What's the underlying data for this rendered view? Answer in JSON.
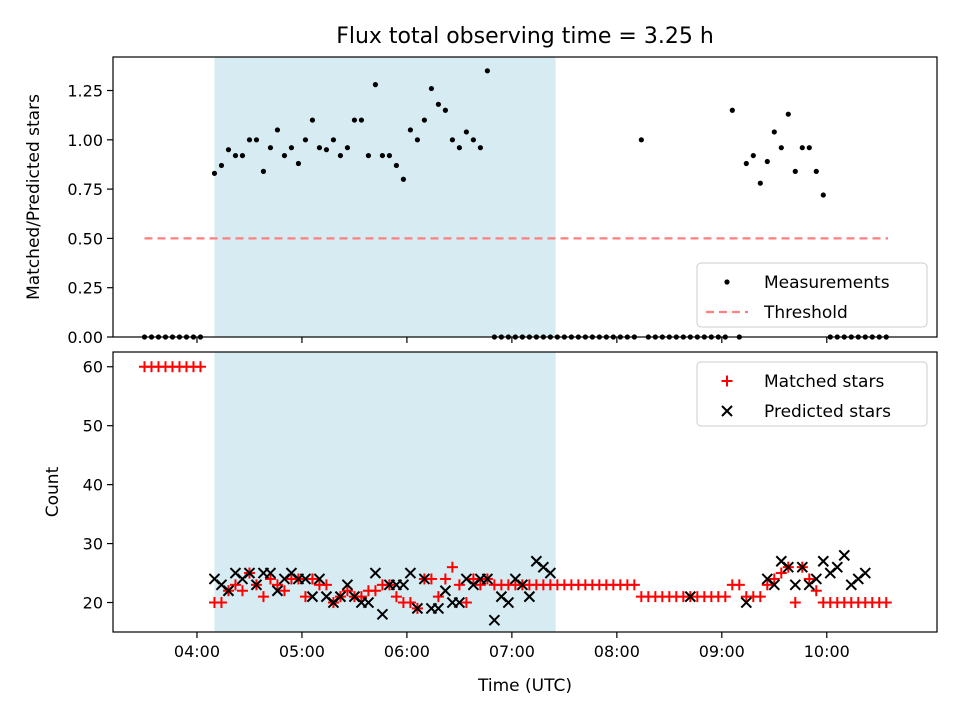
{
  "title": "Flux total observing time = 3.25 h",
  "chart_data": [
    {
      "type": "scatter",
      "ylabel": "Matched/Predicted stars",
      "xlabel": "",
      "xlim": [
        "03:12",
        "11:03"
      ],
      "ylim": [
        0,
        1.42
      ],
      "yticks": [
        0,
        0.25,
        0.5,
        0.75,
        1.0,
        1.25
      ],
      "ytick_labels": [
        "0.00",
        "0.25",
        "0.50",
        "0.75",
        "1.00",
        "1.25"
      ],
      "shaded_interval": [
        "04:10",
        "07:25"
      ],
      "threshold": {
        "name": "Threshold",
        "value": 0.5,
        "x_range": [
          "03:30",
          "10:35"
        ],
        "color": "#ff7f7f",
        "style": "dashed"
      },
      "legend": {
        "position": "lower-right",
        "entries": [
          "Measurements",
          "Threshold"
        ]
      },
      "series": [
        {
          "name": "Measurements",
          "color": "#000000",
          "marker": "dot",
          "x": [
            "03:30",
            "03:34",
            "03:38",
            "03:42",
            "03:46",
            "03:50",
            "03:54",
            "03:58",
            "04:02",
            "04:10",
            "04:14",
            "04:18",
            "04:22",
            "04:26",
            "04:30",
            "04:34",
            "04:38",
            "04:42",
            "04:46",
            "04:50",
            "04:54",
            "04:58",
            "05:02",
            "05:06",
            "05:10",
            "05:14",
            "05:18",
            "05:22",
            "05:26",
            "05:30",
            "05:34",
            "05:38",
            "05:42",
            "05:46",
            "05:50",
            "05:54",
            "05:58",
            "06:02",
            "06:06",
            "06:10",
            "06:14",
            "06:18",
            "06:22",
            "06:26",
            "06:30",
            "06:34",
            "06:38",
            "06:42",
            "06:46",
            "06:50",
            "06:54",
            "06:58",
            "07:02",
            "07:06",
            "07:10",
            "07:14",
            "07:18",
            "07:22",
            "07:26",
            "07:30",
            "07:34",
            "07:38",
            "07:42",
            "07:46",
            "07:50",
            "07:54",
            "07:58",
            "08:02",
            "08:06",
            "08:10",
            "08:14",
            "08:18",
            "08:22",
            "08:26",
            "08:30",
            "08:34",
            "08:38",
            "08:42",
            "08:46",
            "08:50",
            "08:54",
            "08:58",
            "09:02",
            "09:06",
            "09:10",
            "09:14",
            "09:18",
            "09:22",
            "09:26",
            "09:30",
            "09:34",
            "09:38",
            "09:42",
            "09:46",
            "09:50",
            "09:54",
            "09:58",
            "10:02",
            "10:06",
            "10:10",
            "10:14",
            "10:18",
            "10:22",
            "10:26",
            "10:30",
            "10:34"
          ],
          "y": [
            0,
            0,
            0,
            0,
            0,
            0,
            0,
            0,
            0,
            0.83,
            0.87,
            0.95,
            0.92,
            0.92,
            1.0,
            1.0,
            0.84,
            0.96,
            1.05,
            0.92,
            0.96,
            0.88,
            1.0,
            1.1,
            0.96,
            0.95,
            1.0,
            0.92,
            0.96,
            1.1,
            1.1,
            0.92,
            1.28,
            0.92,
            0.92,
            0.87,
            0.8,
            1.05,
            1.0,
            1.1,
            1.26,
            1.18,
            1.15,
            1.0,
            0.96,
            1.04,
            1.0,
            0.96,
            1.35,
            0,
            0,
            0,
            0,
            0,
            0,
            0,
            0,
            0,
            0,
            0,
            0,
            0,
            0,
            0,
            0,
            0,
            0,
            0,
            0,
            0,
            1.0,
            0,
            0,
            0,
            0,
            0,
            0,
            0,
            0,
            0,
            0,
            0,
            0,
            1.15,
            0,
            0.88,
            0.92,
            0.78,
            0.89,
            1.04,
            0.96,
            1.13,
            0.84,
            0.96,
            0.96,
            0.84,
            0.72,
            0,
            0,
            0,
            0,
            0,
            0,
            0,
            0,
            0
          ]
        }
      ]
    },
    {
      "type": "scatter",
      "ylabel": "Count",
      "xlabel": "Time (UTC)",
      "xlim": [
        "03:12",
        "11:03"
      ],
      "ylim": [
        15,
        62.5
      ],
      "yticks": [
        20,
        30,
        40,
        50,
        60
      ],
      "xticks": [
        "04:00",
        "05:00",
        "06:00",
        "07:00",
        "08:00",
        "09:00",
        "10:00"
      ],
      "shaded_interval": [
        "04:10",
        "07:25"
      ],
      "legend": {
        "position": "upper-right",
        "entries": [
          "Matched stars",
          "Predicted stars"
        ]
      },
      "series": [
        {
          "name": "Matched stars",
          "color": "#ff0000",
          "marker": "plus",
          "x": [
            "03:30",
            "03:34",
            "03:38",
            "03:42",
            "03:46",
            "03:50",
            "03:54",
            "03:58",
            "04:02",
            "04:10",
            "04:14",
            "04:18",
            "04:22",
            "04:26",
            "04:30",
            "04:34",
            "04:38",
            "04:42",
            "04:46",
            "04:50",
            "04:54",
            "04:58",
            "05:02",
            "05:06",
            "05:10",
            "05:14",
            "05:18",
            "05:22",
            "05:26",
            "05:30",
            "05:34",
            "05:38",
            "05:42",
            "05:46",
            "05:50",
            "05:54",
            "05:58",
            "06:02",
            "06:06",
            "06:10",
            "06:14",
            "06:18",
            "06:22",
            "06:26",
            "06:30",
            "06:34",
            "06:38",
            "06:42",
            "06:46",
            "06:50",
            "06:54",
            "06:58",
            "07:02",
            "07:06",
            "07:10",
            "07:14",
            "07:18",
            "07:22",
            "07:26",
            "07:30",
            "07:34",
            "07:38",
            "07:42",
            "07:46",
            "07:50",
            "07:54",
            "07:58",
            "08:02",
            "08:06",
            "08:10",
            "08:14",
            "08:18",
            "08:22",
            "08:26",
            "08:30",
            "08:34",
            "08:38",
            "08:42",
            "08:46",
            "08:50",
            "08:54",
            "08:58",
            "09:02",
            "09:06",
            "09:10",
            "09:14",
            "09:18",
            "09:22",
            "09:26",
            "09:30",
            "09:34",
            "09:38",
            "09:42",
            "09:46",
            "09:50",
            "09:54",
            "09:58",
            "10:02",
            "10:06",
            "10:10",
            "10:14",
            "10:18",
            "10:22",
            "10:26",
            "10:30",
            "10:34"
          ],
          "y": [
            60,
            60,
            60,
            60,
            60,
            60,
            60,
            60,
            60,
            20,
            20,
            22,
            23,
            22,
            25,
            23,
            21,
            24,
            23,
            22,
            24,
            24,
            21,
            24,
            23,
            23,
            20,
            21,
            22,
            21,
            21,
            22,
            22,
            23,
            23,
            21,
            20,
            20,
            19,
            24,
            24,
            21,
            24,
            26,
            23,
            20,
            24,
            23,
            24,
            23,
            23,
            23,
            23,
            23,
            23,
            23,
            23,
            23,
            23,
            23,
            23,
            23,
            23,
            23,
            23,
            23,
            23,
            23,
            23,
            23,
            21,
            21,
            21,
            21,
            21,
            21,
            21,
            21,
            21,
            21,
            21,
            21,
            21,
            23,
            23,
            21,
            21,
            21,
            23,
            24,
            25,
            26,
            20,
            26,
            24,
            22,
            20,
            20,
            20,
            20,
            20,
            20,
            20,
            20,
            20,
            20
          ]
        },
        {
          "name": "Predicted stars",
          "color": "#000000",
          "marker": "x",
          "x": [
            "04:10",
            "04:14",
            "04:18",
            "04:22",
            "04:26",
            "04:30",
            "04:34",
            "04:38",
            "04:42",
            "04:46",
            "04:50",
            "04:54",
            "04:58",
            "05:02",
            "05:06",
            "05:10",
            "05:14",
            "05:18",
            "05:22",
            "05:26",
            "05:30",
            "05:34",
            "05:38",
            "05:42",
            "05:46",
            "05:50",
            "05:54",
            "05:58",
            "06:02",
            "06:06",
            "06:10",
            "06:14",
            "06:18",
            "06:22",
            "06:26",
            "06:30",
            "06:34",
            "06:38",
            "06:42",
            "06:46",
            "06:50",
            "06:54",
            "06:58",
            "07:02",
            "07:06",
            "07:10",
            "07:14",
            "07:18",
            "07:22",
            "08:42",
            "09:14",
            "09:26",
            "09:30",
            "09:34",
            "09:38",
            "09:42",
            "09:46",
            "09:50",
            "09:54",
            "09:58",
            "10:02",
            "10:06",
            "10:10",
            "10:14",
            "10:18",
            "10:22"
          ],
          "y": [
            24,
            23,
            22,
            25,
            24,
            25,
            23,
            25,
            25,
            22,
            24,
            25,
            24,
            24,
            21,
            24,
            21,
            20,
            21,
            23,
            21,
            20,
            20,
            25,
            18,
            23,
            23,
            23,
            25,
            19,
            24,
            19,
            19,
            22,
            20,
            20,
            24,
            23,
            24,
            24,
            17,
            21,
            20,
            24,
            23,
            21,
            27,
            26,
            25,
            21,
            20,
            24,
            23,
            27,
            26,
            23,
            26,
            23,
            24,
            27,
            25,
            26,
            28,
            23,
            24,
            25
          ]
        }
      ]
    }
  ]
}
